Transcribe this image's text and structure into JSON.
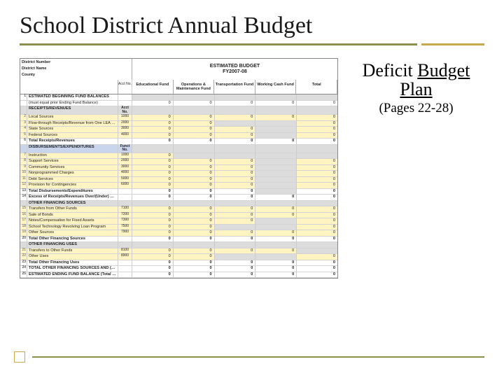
{
  "title": "School District Annual Budget",
  "side": {
    "line1": "Deficit ",
    "line1_ul": "Budget Plan",
    "sub": "(Pages 22-28)"
  },
  "table": {
    "header_title_line1": "ESTIMATED BUDGET",
    "header_title_line2": "FY2007-08",
    "preheader_labels": [
      "District Number",
      "District Name",
      "County"
    ],
    "acct_header": "Acct No.",
    "columns": [
      "Educational Fund",
      "Operations & Maintenance Fund",
      "Transportation Fund",
      "Working Cash Fund",
      "Total"
    ],
    "rows": [
      {
        "n": "1",
        "label": "ESTIMATED BEGINNING FUND BALANCES",
        "acct": "",
        "cls": "section r-plain",
        "vals": [
          "",
          "",
          "",
          "",
          ""
        ]
      },
      {
        "n": "",
        "label": "(must equal prior Ending Fund Balance)",
        "acct": "",
        "cls": "r-plain",
        "vals": [
          "0",
          "0",
          "0",
          "0",
          "0"
        ]
      },
      {
        "n": "",
        "label": "RECEIPTS/REVENUES",
        "acct": "Acct No.",
        "cls": "section r-gray",
        "vals": [
          "",
          "",
          "",
          "",
          ""
        ]
      },
      {
        "n": "2",
        "label": "Local Sources",
        "acct": "1000",
        "cls": "r-yellow",
        "vals": [
          "0",
          "0",
          "0",
          "0",
          "0"
        ]
      },
      {
        "n": "3",
        "label": "Flow-through Receipts/Revenue from One LEA to Another LEA",
        "acct": "2000",
        "cls": "r-yellow",
        "vals": [
          "0",
          "0",
          "",
          "",
          "0"
        ]
      },
      {
        "n": "4",
        "label": "State Sources",
        "acct": "3000",
        "cls": "r-yellow",
        "vals": [
          "0",
          "0",
          "0",
          "",
          "0"
        ]
      },
      {
        "n": "5",
        "label": "Federal Sources",
        "acct": "4000",
        "cls": "r-yellow",
        "vals": [
          "0",
          "0",
          "0",
          "",
          "0"
        ]
      },
      {
        "n": "6",
        "label": "Total Receipts/Revenues",
        "acct": "",
        "cls": "section r-plain",
        "vals": [
          "0",
          "0",
          "0",
          "0",
          "0"
        ]
      },
      {
        "n": "",
        "label": "DISBURSEMENTS/EXPENDITURES",
        "acct": "Funct No.",
        "cls": "section r-blue",
        "vals": [
          "",
          "",
          "",
          "",
          ""
        ]
      },
      {
        "n": "7",
        "label": "Instruction",
        "acct": "1000",
        "cls": "r-yellow",
        "vals": [
          "0",
          "",
          "",
          "",
          ""
        ]
      },
      {
        "n": "8",
        "label": "Support Services",
        "acct": "2000",
        "cls": "r-yellow",
        "vals": [
          "0",
          "0",
          "0",
          "",
          "0"
        ]
      },
      {
        "n": "9",
        "label": "Community Services",
        "acct": "3000",
        "cls": "r-yellow",
        "vals": [
          "0",
          "0",
          "0",
          "",
          "0"
        ]
      },
      {
        "n": "10",
        "label": "Nonprogrammed Charges",
        "acct": "4000",
        "cls": "r-yellow",
        "vals": [
          "0",
          "0",
          "0",
          "",
          "0"
        ]
      },
      {
        "n": "11",
        "label": "Debt Services",
        "acct": "5000",
        "cls": "r-yellow",
        "vals": [
          "0",
          "0",
          "0",
          "",
          "0"
        ]
      },
      {
        "n": "12",
        "label": "Provision for Contingencies",
        "acct": "6000",
        "cls": "r-yellow",
        "vals": [
          "0",
          "0",
          "0",
          "",
          "0"
        ]
      },
      {
        "n": "13",
        "label": "Total Disbursements/Expenditures",
        "acct": "",
        "cls": "section r-plain",
        "vals": [
          "0",
          "0",
          "0",
          "",
          "0"
        ]
      },
      {
        "n": "14",
        "label": "Excess of Receipts/Revenues Over/(Under) Disbursements/Expenditures",
        "acct": "",
        "cls": "section r-plain",
        "vals": [
          "0",
          "0",
          "0",
          "0",
          "0"
        ]
      },
      {
        "n": "",
        "label": "OTHER FINANCING SOURCES",
        "acct": "",
        "cls": "section r-gray",
        "vals": [
          "",
          "",
          "",
          "",
          ""
        ]
      },
      {
        "n": "15",
        "label": "Transfers from Other Funds",
        "acct": "7100",
        "cls": "r-yellow",
        "vals": [
          "0",
          "0",
          "0",
          "0",
          "0"
        ]
      },
      {
        "n": "16",
        "label": "Sale of Bonds",
        "acct": "7200",
        "cls": "r-yellow",
        "vals": [
          "0",
          "0",
          "0",
          "0",
          "0"
        ]
      },
      {
        "n": "17",
        "label": "Notes/Compensation for Fixed Assets",
        "acct": "7300",
        "cls": "r-yellow",
        "vals": [
          "0",
          "0",
          "0",
          "",
          "0"
        ]
      },
      {
        "n": "18",
        "label": "School Technology Revolving Loan Program",
        "acct": "7500",
        "cls": "r-yellow",
        "vals": [
          "0",
          "0",
          "",
          "",
          "0"
        ]
      },
      {
        "n": "19",
        "label": "Other Sources",
        "acct": "7900",
        "cls": "r-yellow",
        "vals": [
          "0",
          "0",
          "0",
          "0",
          "0"
        ]
      },
      {
        "n": "20",
        "label": "Total Other Financing Sources",
        "acct": "",
        "cls": "section r-plain",
        "vals": [
          "0",
          "0",
          "0",
          "0",
          "0"
        ]
      },
      {
        "n": "",
        "label": "OTHER FINANCING USES",
        "acct": "",
        "cls": "section r-gray",
        "vals": [
          "",
          "",
          "",
          "",
          ""
        ]
      },
      {
        "n": "21",
        "label": "Transfers to Other Funds",
        "acct": "8100",
        "cls": "r-yellow",
        "vals": [
          "0",
          "0",
          "0",
          "0",
          ""
        ]
      },
      {
        "n": "22",
        "label": "Other Uses",
        "acct": "8900",
        "cls": "r-yellow",
        "vals": [
          "0",
          "0",
          "",
          "",
          "0"
        ]
      },
      {
        "n": "23",
        "label": "Total Other Financing Uses",
        "acct": "",
        "cls": "section r-plain",
        "vals": [
          "0",
          "0",
          "0",
          "0",
          "0"
        ]
      },
      {
        "n": "24",
        "label": "TOTAL OTHER FINANCING SOURCES AND (USES) (Line 20 minus Line 23)",
        "acct": "",
        "cls": "section r-plain",
        "vals": [
          "0",
          "0",
          "0",
          "0",
          "0"
        ]
      },
      {
        "n": "25",
        "label": "ESTIMATED ENDING FUND BALANCE (Total of Lines 1, 14, 24)",
        "acct": "",
        "cls": "section r-plain",
        "vals": [
          "0",
          "0",
          "0",
          "0",
          "0"
        ]
      }
    ]
  },
  "colors": {
    "accent_olive": "#8a8f4a",
    "accent_gold": "#c9a84a"
  }
}
